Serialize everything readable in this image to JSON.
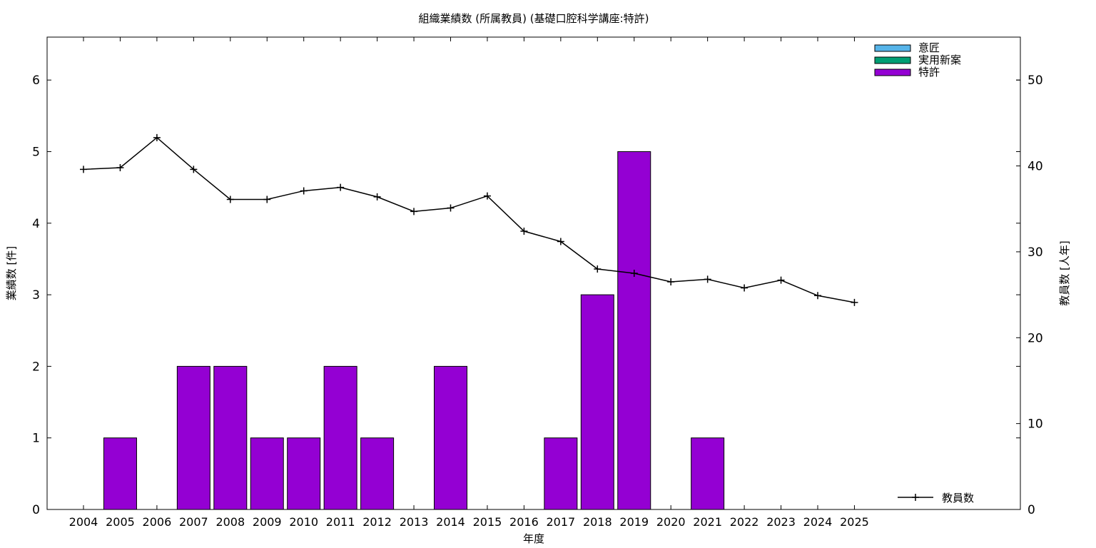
{
  "chart_data": {
    "type": "bar",
    "title": "組織業績数 (所属教員) (基礎口腔科学講座:特許)",
    "xlabel": "年度",
    "ylabel": "業績数 [件]",
    "y2label": "教員数 [人年]",
    "categories": [
      "2004",
      "2005",
      "2006",
      "2007",
      "2008",
      "2009",
      "2010",
      "2011",
      "2012",
      "2013",
      "2014",
      "2015",
      "2016",
      "2017",
      "2018",
      "2019",
      "2020",
      "2021",
      "2022",
      "2023",
      "2024",
      "2025"
    ],
    "ylim": [
      0,
      6.6
    ],
    "y2lim": [
      0,
      55
    ],
    "yticks": [
      "0",
      "1",
      "2",
      "3",
      "4",
      "5",
      "6"
    ],
    "y2ticks": [
      "0",
      "10",
      "20",
      "30",
      "40",
      "50"
    ],
    "legend_position": "top-right",
    "series": [
      {
        "name": "意匠",
        "kind": "bar",
        "color": "#56b4e9",
        "values": [
          0,
          0,
          0,
          0,
          0,
          0,
          0,
          0,
          0,
          0,
          0,
          0,
          0,
          0,
          0,
          0,
          0,
          0,
          0,
          0,
          0,
          0
        ]
      },
      {
        "name": "実用新案",
        "kind": "bar",
        "color": "#009e73",
        "values": [
          0,
          0,
          0,
          0,
          0,
          0,
          0,
          0,
          0,
          0,
          0,
          0,
          0,
          0,
          0,
          0,
          0,
          0,
          0,
          0,
          0,
          0
        ]
      },
      {
        "name": "特許",
        "kind": "bar",
        "color": "#9400d3",
        "values": [
          0,
          1,
          0,
          2,
          2,
          1,
          1,
          2,
          1,
          0,
          2,
          0,
          0,
          1,
          3,
          5,
          0,
          1,
          0,
          0,
          0,
          0
        ]
      }
    ],
    "line_series": {
      "name": "教員数",
      "axis": "y2",
      "color": "#000000",
      "values": [
        39.6,
        39.8,
        43.3,
        39.6,
        36.1,
        36.1,
        37.1,
        37.5,
        36.4,
        34.7,
        35.1,
        36.5,
        32.4,
        31.2,
        28.0,
        27.5,
        26.5,
        26.8,
        25.8,
        26.7,
        24.9,
        24.1
      ]
    }
  }
}
